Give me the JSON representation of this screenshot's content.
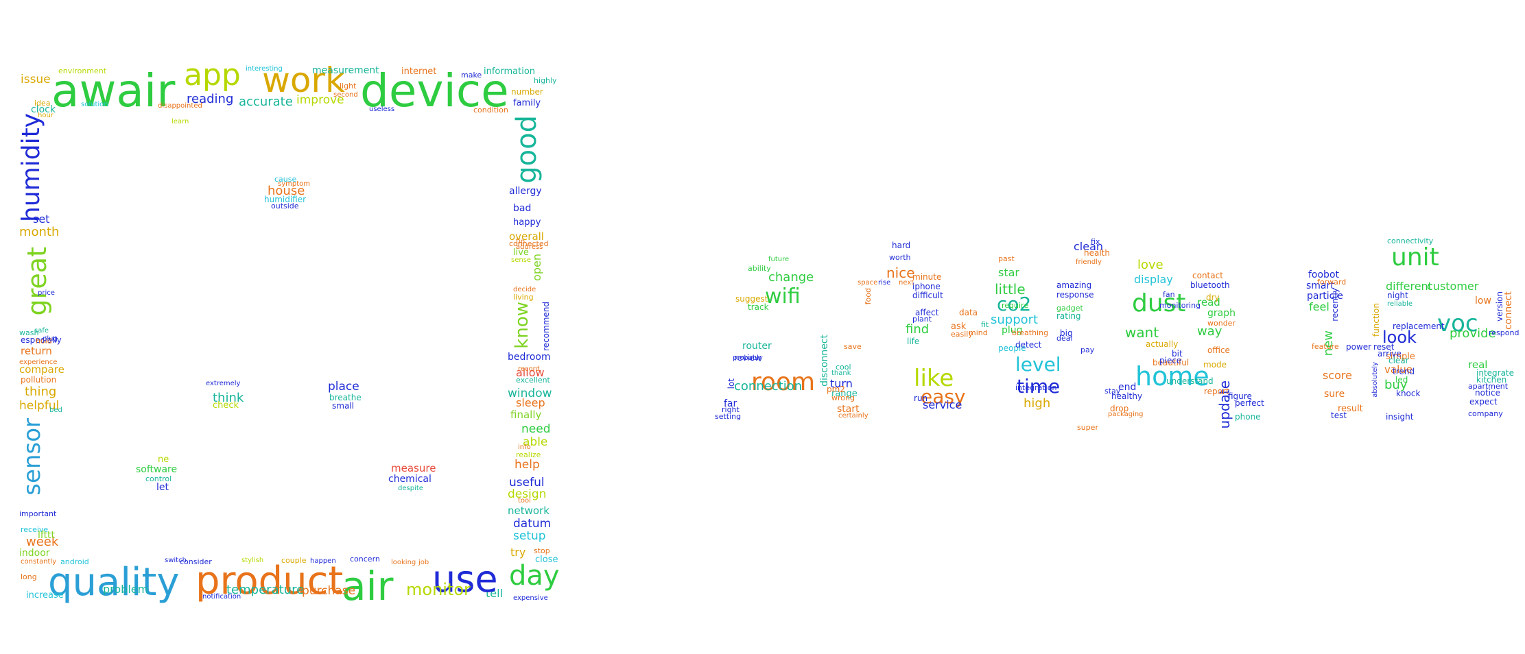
{
  "palette": {
    "lime": "#7ed321",
    "green": "#2ecc40",
    "yellowgreen": "#b5d900",
    "cyan": "#22c3d8",
    "blue": "#1f2bd6",
    "orange": "#e8731a",
    "red": "#e74c3c",
    "gold": "#d9a800",
    "teal": "#17b59a",
    "skyblue": "#2a9fd6"
  },
  "left_cloud": {
    "words": [
      {
        "t": "awair",
        "c": "green"
      },
      {
        "t": "app",
        "c": "yellowgreen"
      },
      {
        "t": "work",
        "c": "gold"
      },
      {
        "t": "device",
        "c": "green"
      },
      {
        "t": "measurement",
        "c": "teal"
      },
      {
        "t": "internet",
        "c": "orange"
      },
      {
        "t": "information",
        "c": "teal"
      },
      {
        "t": "environment",
        "c": "yellowgreen"
      },
      {
        "t": "issue",
        "c": "gold"
      },
      {
        "t": "reading",
        "c": "blue"
      },
      {
        "t": "accurate",
        "c": "teal"
      },
      {
        "t": "improve",
        "c": "yellowgreen"
      },
      {
        "t": "interesting",
        "c": "cyan"
      },
      {
        "t": "solution",
        "c": "cyan"
      },
      {
        "t": "clock",
        "c": "teal"
      },
      {
        "t": "family",
        "c": "blue"
      },
      {
        "t": "number",
        "c": "gold"
      },
      {
        "t": "humidity",
        "c": "blue"
      },
      {
        "t": "good",
        "c": "teal"
      },
      {
        "t": "set",
        "c": "blue"
      },
      {
        "t": "month",
        "c": "gold"
      },
      {
        "t": "great",
        "c": "lime"
      },
      {
        "t": "allergy",
        "c": "blue"
      },
      {
        "t": "bad",
        "c": "blue"
      },
      {
        "t": "happy",
        "c": "blue"
      },
      {
        "t": "overall",
        "c": "gold"
      },
      {
        "t": "live",
        "c": "lime"
      },
      {
        "t": "sense",
        "c": "yellowgreen"
      },
      {
        "t": "open",
        "c": "lime"
      },
      {
        "t": "know",
        "c": "lime"
      },
      {
        "t": "recommend",
        "c": "blue"
      },
      {
        "t": "bedroom",
        "c": "blue"
      },
      {
        "t": "allow",
        "c": "red"
      },
      {
        "t": "excellent",
        "c": "teal"
      },
      {
        "t": "window",
        "c": "teal"
      },
      {
        "t": "sleep",
        "c": "orange"
      },
      {
        "t": "finally",
        "c": "lime"
      },
      {
        "t": "need",
        "c": "green"
      },
      {
        "t": "able",
        "c": "yellowgreen"
      },
      {
        "t": "help",
        "c": "orange"
      },
      {
        "t": "useful",
        "c": "blue"
      },
      {
        "t": "design",
        "c": "yellowgreen"
      },
      {
        "t": "network",
        "c": "teal"
      },
      {
        "t": "datum",
        "c": "blue"
      },
      {
        "t": "setup",
        "c": "cyan"
      },
      {
        "t": "try",
        "c": "gold"
      },
      {
        "t": "day",
        "c": "green"
      },
      {
        "t": "tell",
        "c": "teal"
      },
      {
        "t": "expensive",
        "c": "blue"
      },
      {
        "t": "quality",
        "c": "skyblue"
      },
      {
        "t": "product",
        "c": "orange"
      },
      {
        "t": "air",
        "c": "green"
      },
      {
        "t": "use",
        "c": "blue"
      },
      {
        "t": "monitor",
        "c": "yellowgreen"
      },
      {
        "t": "temperature",
        "c": "teal"
      },
      {
        "t": "purchase",
        "c": "orange"
      },
      {
        "t": "problem",
        "c": "teal"
      },
      {
        "t": "sensor",
        "c": "skyblue"
      },
      {
        "t": "week",
        "c": "orange"
      },
      {
        "t": "indoor",
        "c": "lime"
      },
      {
        "t": "important",
        "c": "blue"
      },
      {
        "t": "compare",
        "c": "gold"
      },
      {
        "t": "pollution",
        "c": "orange"
      },
      {
        "t": "thing",
        "c": "gold"
      },
      {
        "t": "helpful",
        "c": "gold"
      },
      {
        "t": "return",
        "c": "orange"
      },
      {
        "t": "experience",
        "c": "orange"
      },
      {
        "t": "especially",
        "c": "blue"
      },
      {
        "t": "price",
        "c": "blue"
      },
      {
        "t": "house",
        "c": "orange"
      },
      {
        "t": "humidifier",
        "c": "cyan"
      },
      {
        "t": "outside",
        "c": "blue"
      },
      {
        "t": "cause",
        "c": "cyan"
      },
      {
        "t": "extremely",
        "c": "blue"
      },
      {
        "t": "think",
        "c": "teal"
      },
      {
        "t": "check",
        "c": "yellowgreen"
      },
      {
        "t": "place",
        "c": "blue"
      },
      {
        "t": "breathe",
        "c": "teal"
      },
      {
        "t": "small",
        "c": "blue"
      },
      {
        "t": "software",
        "c": "green"
      },
      {
        "t": "control",
        "c": "teal"
      },
      {
        "t": "let",
        "c": "blue"
      },
      {
        "t": "measure",
        "c": "red"
      },
      {
        "t": "chemical",
        "c": "blue"
      },
      {
        "t": "despite",
        "c": "teal"
      },
      {
        "t": "android",
        "c": "cyan"
      },
      {
        "t": "consider",
        "c": "blue"
      },
      {
        "t": "couple",
        "c": "gold"
      },
      {
        "t": "concern",
        "c": "blue"
      },
      {
        "t": "notification",
        "c": "blue"
      },
      {
        "t": "increase",
        "c": "cyan"
      },
      {
        "t": "long",
        "c": "orange"
      },
      {
        "t": "constantly",
        "c": "orange"
      },
      {
        "t": "receive",
        "c": "cyan"
      },
      {
        "t": "lfttt",
        "c": "lime"
      },
      {
        "t": "light",
        "c": "orange"
      },
      {
        "t": "second",
        "c": "orange"
      },
      {
        "t": "useless",
        "c": "blue"
      },
      {
        "t": "highly",
        "c": "teal"
      },
      {
        "t": "disappointed",
        "c": "orange"
      },
      {
        "t": "condition",
        "c": "orange"
      },
      {
        "t": "make",
        "c": "blue"
      },
      {
        "t": "connected",
        "c": "orange"
      },
      {
        "t": "living",
        "c": "gold"
      },
      {
        "t": "decide",
        "c": "orange"
      },
      {
        "t": "happen",
        "c": "blue"
      },
      {
        "t": "switch",
        "c": "blue"
      },
      {
        "t": "stylish",
        "c": "yellowgreen"
      },
      {
        "t": "realize",
        "c": "yellowgreen"
      },
      {
        "t": "stop",
        "c": "orange"
      },
      {
        "t": "close",
        "c": "cyan"
      },
      {
        "t": "symptom",
        "c": "orange"
      },
      {
        "t": "safe",
        "c": "teal"
      },
      {
        "t": "wash",
        "c": "teal"
      },
      {
        "t": "hold",
        "c": "orange"
      },
      {
        "t": "plug",
        "c": "blue"
      },
      {
        "t": "bed",
        "c": "teal"
      },
      {
        "t": "ne",
        "c": "yellowgreen"
      },
      {
        "t": "hour",
        "c": "gold"
      },
      {
        "t": "idea",
        "c": "gold"
      },
      {
        "t": "learn",
        "c": "yellowgreen"
      },
      {
        "t": "address",
        "c": "orange"
      },
      {
        "t": "tip",
        "c": "orange"
      },
      {
        "t": "tool",
        "c": "orange"
      },
      {
        "t": "info",
        "c": "orange"
      },
      {
        "t": "record",
        "c": "orange"
      },
      {
        "t": "job",
        "c": "orange"
      },
      {
        "t": "looking",
        "c": "orange"
      }
    ]
  },
  "right_cloud": {
    "words": [
      {
        "t": "room",
        "c": "orange"
      },
      {
        "t": "wifi",
        "c": "green"
      },
      {
        "t": "change",
        "c": "green"
      },
      {
        "t": "connection",
        "c": "teal"
      },
      {
        "t": "disconnect",
        "c": "teal"
      },
      {
        "t": "router",
        "c": "teal"
      },
      {
        "t": "review",
        "c": "blue"
      },
      {
        "t": "far",
        "c": "blue"
      },
      {
        "t": "lot",
        "c": "blue"
      },
      {
        "t": "turn",
        "c": "blue"
      },
      {
        "t": "range",
        "c": "teal"
      },
      {
        "t": "start",
        "c": "orange"
      },
      {
        "t": "setting",
        "c": "blue"
      },
      {
        "t": "right",
        "c": "blue"
      },
      {
        "t": "nice",
        "c": "orange"
      },
      {
        "t": "like",
        "c": "yellowgreen"
      },
      {
        "t": "easy",
        "c": "orange"
      },
      {
        "t": "find",
        "c": "green"
      },
      {
        "t": "life",
        "c": "teal"
      },
      {
        "t": "service",
        "c": "blue"
      },
      {
        "t": "co2",
        "c": "teal"
      },
      {
        "t": "little",
        "c": "green"
      },
      {
        "t": "support",
        "c": "cyan"
      },
      {
        "t": "star",
        "c": "green"
      },
      {
        "t": "plug",
        "c": "green"
      },
      {
        "t": "level",
        "c": "cyan"
      },
      {
        "t": "time",
        "c": "blue"
      },
      {
        "t": "high",
        "c": "gold"
      },
      {
        "t": "clean",
        "c": "blue"
      },
      {
        "t": "dust",
        "c": "green"
      },
      {
        "t": "display",
        "c": "cyan"
      },
      {
        "t": "love",
        "c": "yellowgreen"
      },
      {
        "t": "want",
        "c": "green"
      },
      {
        "t": "home",
        "c": "cyan"
      },
      {
        "t": "way",
        "c": "green"
      },
      {
        "t": "graph",
        "c": "green"
      },
      {
        "t": "read",
        "c": "green"
      },
      {
        "t": "update",
        "c": "blue"
      },
      {
        "t": "end",
        "c": "blue"
      },
      {
        "t": "foobot",
        "c": "blue"
      },
      {
        "t": "smart",
        "c": "blue"
      },
      {
        "t": "feel",
        "c": "green"
      },
      {
        "t": "new",
        "c": "green"
      },
      {
        "t": "score",
        "c": "orange"
      },
      {
        "t": "sure",
        "c": "orange"
      },
      {
        "t": "unit",
        "c": "green"
      },
      {
        "t": "voc",
        "c": "teal"
      },
      {
        "t": "look",
        "c": "blue"
      },
      {
        "t": "provide",
        "c": "green"
      },
      {
        "t": "different",
        "c": "green"
      },
      {
        "t": "customer",
        "c": "green"
      },
      {
        "t": "buy",
        "c": "green"
      },
      {
        "t": "value",
        "c": "orange"
      },
      {
        "t": "simple",
        "c": "orange"
      },
      {
        "t": "real",
        "c": "green"
      },
      {
        "t": "low",
        "c": "orange"
      },
      {
        "t": "connect",
        "c": "orange"
      },
      {
        "t": "people",
        "c": "cyan"
      },
      {
        "t": "detect",
        "c": "blue"
      },
      {
        "t": "report",
        "c": "orange"
      },
      {
        "t": "figure",
        "c": "blue"
      },
      {
        "t": "perfect",
        "c": "blue"
      },
      {
        "t": "phone",
        "c": "teal"
      },
      {
        "t": "drop",
        "c": "orange"
      },
      {
        "t": "healthy",
        "c": "blue"
      },
      {
        "t": "packaging",
        "c": "orange"
      },
      {
        "t": "beautiful",
        "c": "orange"
      },
      {
        "t": "understand",
        "c": "teal"
      },
      {
        "t": "amazing",
        "c": "blue"
      },
      {
        "t": "response",
        "c": "blue"
      },
      {
        "t": "friendly",
        "c": "orange"
      },
      {
        "t": "gadget",
        "c": "green"
      },
      {
        "t": "rating",
        "c": "teal"
      },
      {
        "t": "insight",
        "c": "blue"
      },
      {
        "t": "company",
        "c": "blue"
      },
      {
        "t": "expect",
        "c": "blue"
      },
      {
        "t": "notice",
        "c": "blue"
      },
      {
        "t": "apartment",
        "c": "blue"
      },
      {
        "t": "kitchen",
        "c": "teal"
      },
      {
        "t": "integrate",
        "c": "teal"
      },
      {
        "t": "replacement",
        "c": "blue"
      },
      {
        "t": "night",
        "c": "blue"
      },
      {
        "t": "reliable",
        "c": "teal"
      },
      {
        "t": "connectivity",
        "c": "teal"
      },
      {
        "t": "result",
        "c": "orange"
      },
      {
        "t": "particle",
        "c": "blue"
      },
      {
        "t": "reset",
        "c": "blue"
      },
      {
        "t": "arrive",
        "c": "blue"
      },
      {
        "t": "absolutely",
        "c": "blue"
      },
      {
        "t": "recently",
        "c": "blue"
      },
      {
        "t": "function",
        "c": "gold"
      },
      {
        "t": "bluetooth",
        "c": "blue"
      },
      {
        "t": "dry",
        "c": "gold"
      },
      {
        "t": "contact",
        "c": "orange"
      },
      {
        "t": "integration",
        "c": "blue"
      },
      {
        "t": "breathing",
        "c": "orange"
      },
      {
        "t": "require",
        "c": "green"
      },
      {
        "t": "fit",
        "c": "teal"
      },
      {
        "t": "data",
        "c": "orange"
      },
      {
        "t": "ask",
        "c": "orange"
      },
      {
        "t": "easily",
        "c": "orange"
      },
      {
        "t": "mind",
        "c": "orange"
      },
      {
        "t": "past",
        "c": "orange"
      },
      {
        "t": "cool",
        "c": "teal"
      },
      {
        "t": "thank",
        "c": "teal"
      },
      {
        "t": "pm2",
        "c": "orange"
      },
      {
        "t": "wrong",
        "c": "orange"
      },
      {
        "t": "certainly",
        "c": "orange"
      },
      {
        "t": "suggest",
        "c": "gold"
      },
      {
        "t": "track",
        "c": "green"
      },
      {
        "t": "ability",
        "c": "green"
      },
      {
        "t": "probably",
        "c": "blue"
      },
      {
        "t": "future",
        "c": "green"
      },
      {
        "t": "difficult",
        "c": "blue"
      },
      {
        "t": "iphone",
        "c": "blue"
      },
      {
        "t": "minute",
        "c": "orange"
      },
      {
        "t": "affect",
        "c": "blue"
      },
      {
        "t": "plant",
        "c": "blue"
      },
      {
        "t": "run",
        "c": "blue"
      },
      {
        "t": "super",
        "c": "orange"
      },
      {
        "t": "big",
        "c": "blue"
      },
      {
        "t": "health",
        "c": "orange"
      },
      {
        "t": "fix",
        "c": "blue"
      },
      {
        "t": "piece",
        "c": "blue"
      },
      {
        "t": "actually",
        "c": "gold"
      },
      {
        "t": "bit",
        "c": "blue"
      },
      {
        "t": "mode",
        "c": "gold"
      },
      {
        "t": "office",
        "c": "orange"
      },
      {
        "t": "wonder",
        "c": "orange"
      },
      {
        "t": "clear",
        "c": "teal"
      },
      {
        "t": "trend",
        "c": "blue"
      },
      {
        "t": "led",
        "c": "green"
      },
      {
        "t": "knock",
        "c": "blue"
      },
      {
        "t": "respond",
        "c": "blue"
      },
      {
        "t": "version",
        "c": "blue"
      },
      {
        "t": "forward",
        "c": "orange"
      },
      {
        "t": "feature",
        "c": "orange"
      },
      {
        "t": "power",
        "c": "blue"
      },
      {
        "t": "test",
        "c": "blue"
      },
      {
        "t": "hard",
        "c": "blue"
      },
      {
        "t": "worth",
        "c": "blue"
      },
      {
        "t": "food",
        "c": "orange"
      },
      {
        "t": "save",
        "c": "orange"
      },
      {
        "t": "deal",
        "c": "blue"
      },
      {
        "t": "pay",
        "c": "blue"
      },
      {
        "t": "fan",
        "c": "blue"
      },
      {
        "t": "stay",
        "c": "blue"
      },
      {
        "t": "monitoring",
        "c": "blue"
      },
      {
        "t": "space",
        "c": "orange"
      },
      {
        "t": "rise",
        "c": "blue"
      },
      {
        "t": "next",
        "c": "orange"
      }
    ]
  }
}
